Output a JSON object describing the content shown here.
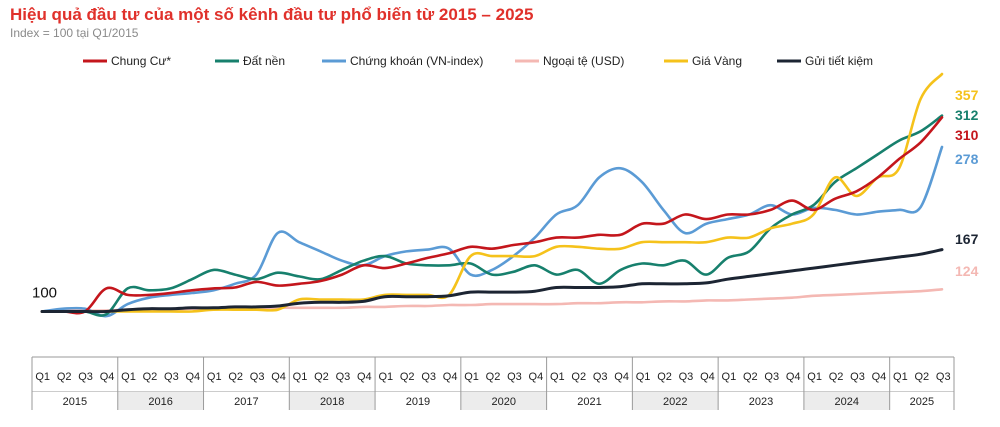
{
  "chart_data": {
    "type": "line",
    "title": "Hiệu quả đầu tư của một số kênh đầu tư phổ biến từ 2015 – 2025",
    "subtitle": "Index = 100 tại Q1/2015",
    "start_label": "100",
    "quarters": [
      "Q1",
      "Q2",
      "Q3",
      "Q4"
    ],
    "years": [
      "2015",
      "2016",
      "2017",
      "2018",
      "2019",
      "2020",
      "2021",
      "2022",
      "2023",
      "2024",
      "2025"
    ],
    "x": [
      "Q1/2015",
      "Q2/2015",
      "Q3/2015",
      "Q4/2015",
      "Q1/2016",
      "Q2/2016",
      "Q3/2016",
      "Q4/2016",
      "Q1/2017",
      "Q2/2017",
      "Q3/2017",
      "Q4/2017",
      "Q1/2018",
      "Q2/2018",
      "Q3/2018",
      "Q4/2018",
      "Q1/2019",
      "Q2/2019",
      "Q3/2019",
      "Q4/2019",
      "Q1/2020",
      "Q2/2020",
      "Q3/2020",
      "Q4/2020",
      "Q1/2021",
      "Q2/2021",
      "Q3/2021",
      "Q4/2021",
      "Q1/2022",
      "Q2/2022",
      "Q3/2022",
      "Q4/2022",
      "Q1/2023",
      "Q2/2023",
      "Q3/2023",
      "Q4/2023",
      "Q1/2024",
      "Q2/2024",
      "Q3/2024",
      "Q4/2024",
      "Q1/2025",
      "Q2/2025",
      "Q3/2025"
    ],
    "ylim": [
      80,
      370
    ],
    "legend_position": "top",
    "series": [
      {
        "name": "Chung Cư*",
        "color": "#c4161c",
        "end_label": "310",
        "values": [
          100,
          100,
          100,
          125,
          118,
          118,
          120,
          123,
          125,
          126,
          132,
          128,
          130,
          133,
          140,
          150,
          147,
          152,
          158,
          163,
          170,
          168,
          172,
          175,
          180,
          180,
          183,
          183,
          195,
          195,
          205,
          200,
          205,
          205,
          210,
          220,
          210,
          222,
          230,
          245,
          265,
          283,
          310
        ]
      },
      {
        "name": "Đất nền",
        "color": "#17806d",
        "end_label": "312",
        "values": [
          100,
          100,
          100,
          97,
          125,
          123,
          125,
          135,
          145,
          140,
          135,
          142,
          138,
          135,
          145,
          155,
          160,
          152,
          150,
          150,
          152,
          140,
          143,
          150,
          140,
          145,
          130,
          145,
          152,
          150,
          155,
          140,
          158,
          165,
          190,
          205,
          215,
          240,
          255,
          270,
          285,
          295,
          312
        ]
      },
      {
        "name": "Chứng khoán (VN-index)",
        "color": "#5b9bd5",
        "end_label": "278",
        "values": [
          100,
          103,
          103,
          95,
          108,
          115,
          118,
          120,
          123,
          130,
          140,
          185,
          175,
          165,
          155,
          150,
          160,
          165,
          167,
          168,
          140,
          145,
          160,
          180,
          205,
          215,
          245,
          255,
          240,
          210,
          185,
          195,
          200,
          205,
          215,
          205,
          212,
          210,
          205,
          208,
          210,
          213,
          278
        ]
      },
      {
        "name": "Ngoại tệ (USD)",
        "color": "#f4b8b3",
        "end_label": "124",
        "values": [
          100,
          101,
          101,
          101,
          102,
          102,
          102,
          103,
          103,
          103,
          103,
          104,
          104,
          104,
          104,
          105,
          105,
          106,
          106,
          107,
          107,
          108,
          108,
          108,
          108,
          109,
          109,
          110,
          110,
          111,
          111,
          112,
          112,
          113,
          114,
          115,
          117,
          118,
          119,
          120,
          121,
          122,
          124
        ]
      },
      {
        "name": "Giá Vàng",
        "color": "#f5c21b",
        "end_label": "357",
        "values": [
          100,
          100,
          100,
          100,
          100,
          100,
          100,
          100,
          102,
          102,
          102,
          102,
          113,
          113,
          113,
          113,
          118,
          118,
          118,
          118,
          160,
          160,
          160,
          160,
          170,
          170,
          168,
          168,
          175,
          175,
          175,
          175,
          180,
          180,
          190,
          195,
          205,
          245,
          225,
          245,
          255,
          330,
          357
        ]
      },
      {
        "name": "Gửi tiết kiệm",
        "color": "#1c2533",
        "end_label": "167",
        "values": [
          100,
          100,
          100,
          100,
          102,
          103,
          103,
          104,
          104,
          105,
          105,
          106,
          109,
          110,
          110,
          111,
          116,
          116,
          116,
          117,
          121,
          121,
          121,
          122,
          126,
          126,
          126,
          127,
          130,
          130,
          130,
          131,
          135,
          138,
          141,
          144,
          147,
          150,
          153,
          156,
          159,
          162,
          167
        ]
      }
    ]
  }
}
